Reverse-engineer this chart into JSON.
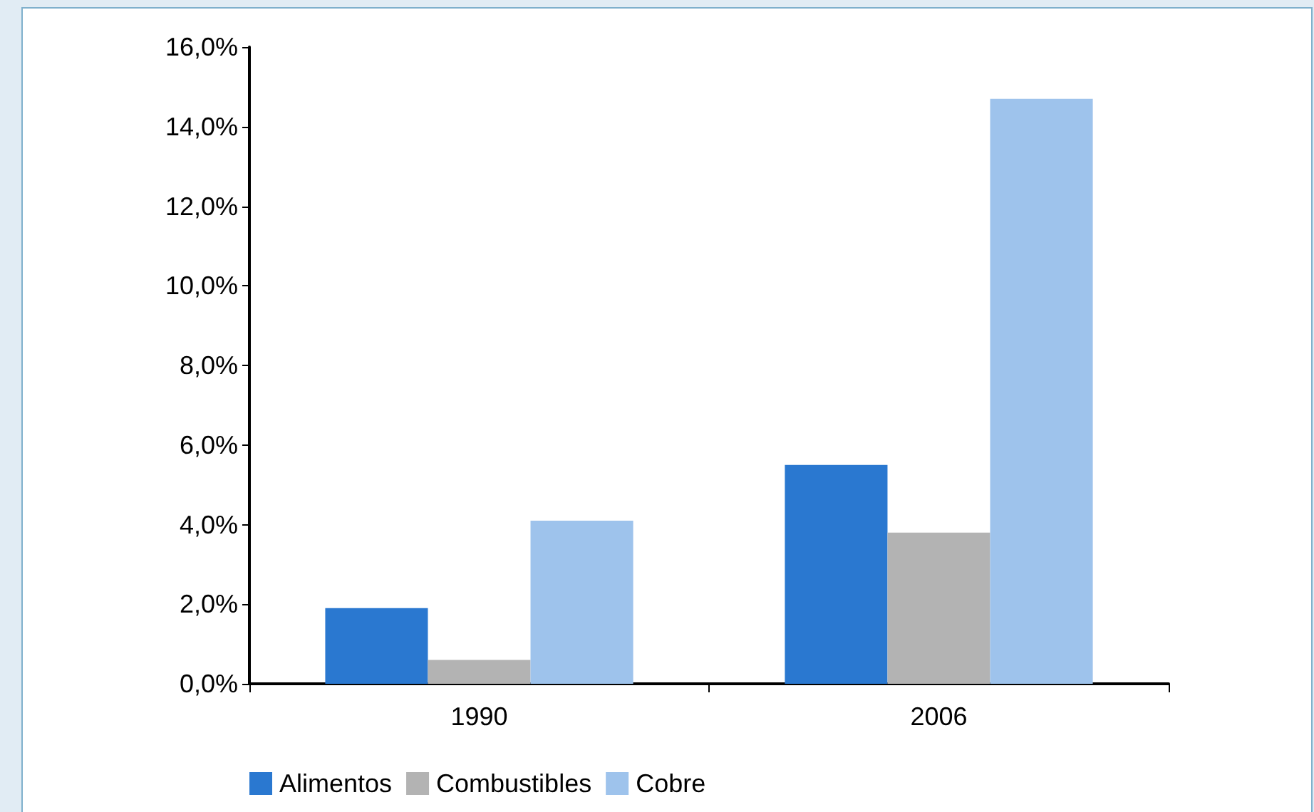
{
  "chart_data": {
    "type": "bar",
    "categories": [
      "1990",
      "2006"
    ],
    "series": [
      {
        "name": "Alimentos",
        "color": "#2a78d0",
        "values": [
          1.9,
          5.5
        ]
      },
      {
        "name": "Combustibles",
        "color": "#b3b3b3",
        "values": [
          0.6,
          3.8
        ]
      },
      {
        "name": "Cobre",
        "color": "#9ec3ec",
        "values": [
          4.1,
          14.7
        ]
      }
    ],
    "ylim": [
      0,
      16
    ],
    "yticks": [
      {
        "value": 0,
        "label": "0,0%"
      },
      {
        "value": 2,
        "label": "2,0%"
      },
      {
        "value": 4,
        "label": "4,0%"
      },
      {
        "value": 6,
        "label": "6,0%"
      },
      {
        "value": 8,
        "label": "8,0%"
      },
      {
        "value": 10,
        "label": "10,0%"
      },
      {
        "value": 12,
        "label": "12,0%"
      },
      {
        "value": 14,
        "label": "14,0%"
      },
      {
        "value": 16,
        "label": "16,0%"
      }
    ],
    "grid": false,
    "legend": "bottom"
  }
}
